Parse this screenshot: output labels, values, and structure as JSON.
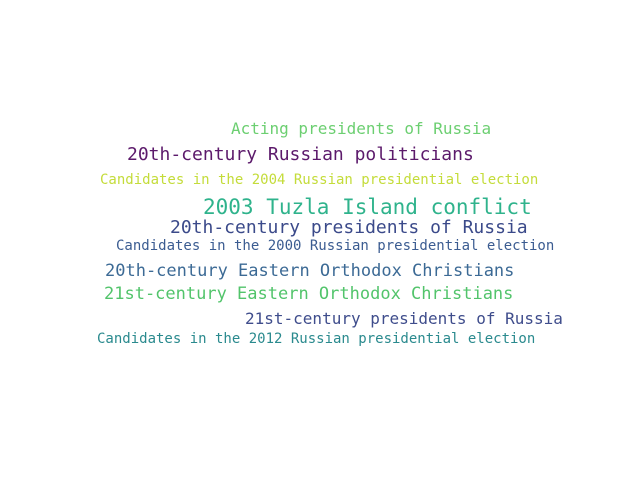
{
  "words": [
    {
      "text": "Acting presidents of Russia",
      "color": "#6ccf71"
    },
    {
      "text": "20th-century Russian politicians",
      "color": "#5c1a6b"
    },
    {
      "text": "Candidates in the 2004 Russian presidential election",
      "color": "#c4dc3a"
    },
    {
      "text": "2003 Tuzla Island conflict",
      "color": "#2fb38c"
    },
    {
      "text": "20th-century presidents of Russia",
      "color": "#3b4a8a"
    },
    {
      "text": "Candidates in the 2000 Russian presidential election",
      "color": "#3b5c91"
    },
    {
      "text": "20th-century Eastern Orthodox Christians",
      "color": "#3c6a95"
    },
    {
      "text": "21st-century Eastern Orthodox Christians",
      "color": "#52c46b"
    },
    {
      "text": "21st-century presidents of Russia",
      "color": "#3f4d8c"
    },
    {
      "text": "Candidates in the 2012 Russian presidential election",
      "color": "#2a8a8e"
    }
  ]
}
